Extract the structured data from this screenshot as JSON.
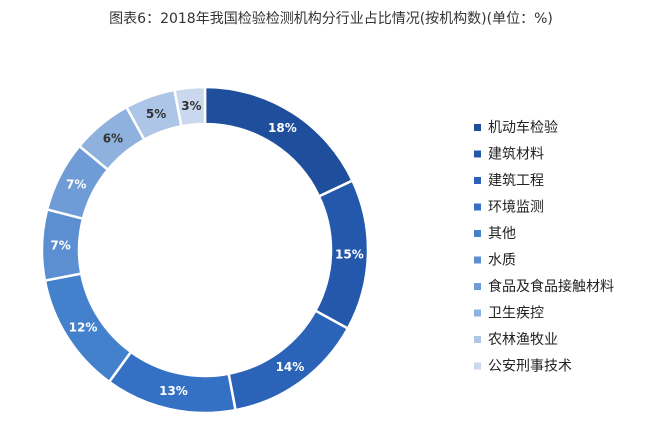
{
  "chart_data": {
    "type": "pie",
    "title": "图表6：2018年我国检验检测机构分行业占比情况(按机构数)(单位：%)",
    "categories": [
      "机动车检验",
      "建筑材料",
      "建筑工程",
      "环境监测",
      "其他",
      "水质",
      "食品及食品接触材料",
      "卫生疾控",
      "农林渔牧业",
      "公安刑事技术"
    ],
    "values": [
      18,
      15,
      14,
      13,
      12,
      7,
      7,
      6,
      5,
      3
    ],
    "labels": [
      "18%",
      "15%",
      "14%",
      "13%",
      "12%",
      "7%",
      "7%",
      "6%",
      "5%",
      "3%"
    ],
    "colors": [
      "#1f4e9c",
      "#2458ad",
      "#2b63b9",
      "#3470c4",
      "#4381cd",
      "#5c8fd2",
      "#6f9bd6",
      "#8fb1de",
      "#adc6e7",
      "#c9d8ee"
    ],
    "label_colors": [
      "#ffffff",
      "#ffffff",
      "#ffffff",
      "#ffffff",
      "#ffffff",
      "#ffffff",
      "#ffffff",
      "#333333",
      "#333333",
      "#333333"
    ],
    "donut": true,
    "legend_position": "right"
  }
}
